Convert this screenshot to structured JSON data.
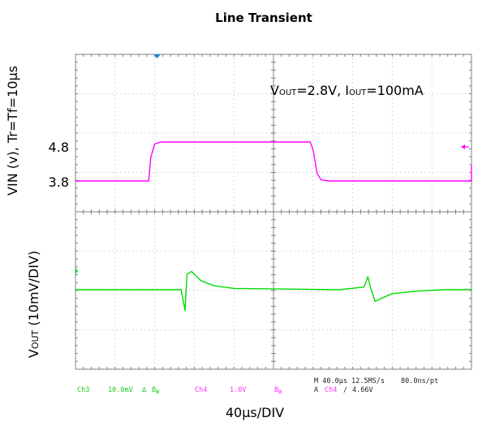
{
  "chart_data": {
    "type": "line",
    "title": "Line Transient",
    "xlabel": "40µs/DIV",
    "ylabel_top": "VIN (v), Tr=Tf=10µs",
    "ylabel_bottom_main": "V",
    "ylabel_bottom_sub": "OUT",
    "ylabel_bottom_rest": " (10mV/DIV)",
    "annotation": {
      "v": "V",
      "v_sub": "OUT",
      "v_val": "=2.8V, ",
      "i": "I",
      "i_sub": "OUT",
      "i_val": "=100mA"
    },
    "x_divisions": 10,
    "x_us_per_div": 40,
    "grid": true,
    "colors": {
      "vin": "#ff00ff",
      "vout": "#00dd00",
      "grid": "#bfbfbf",
      "frame": "#808080",
      "text": "#000000",
      "trigger": "#1a8fcf"
    },
    "series": [
      {
        "name": "VIN",
        "unit": "V",
        "x_us": [
          0,
          180,
          200,
          385,
          400,
          400
        ],
        "y": [
          3.8,
          3.8,
          4.8,
          4.8,
          3.8,
          3.8
        ],
        "tick_labels": [
          "4.8",
          "3.8"
        ],
        "tick_values": [
          4.8,
          3.8
        ]
      },
      {
        "name": "VOUT",
        "unit": "mV",
        "x_us": [
          0,
          150,
          160,
          163,
          166,
          169,
          176,
          190,
          210,
          240,
          400,
          437,
          443,
          448,
          454,
          462,
          480,
          520,
          560,
          600
        ],
        "y": [
          0.0,
          0.0,
          0.0,
          -0.4,
          -0.8,
          0.6,
          0.7,
          0.35,
          0.15,
          0.05,
          0.0,
          0.1,
          0.5,
          0.0,
          -0.45,
          -0.35,
          -0.15,
          -0.05,
          0.0,
          0.0
        ]
      }
    ],
    "scope_info": {
      "ch3": "Ch3",
      "ch3_scale": "10.0mV",
      "ch3_coupling": "∆",
      "ch3_bw": "B",
      "ch3_bw_sub": "W",
      "ch4": "Ch4",
      "ch4_scale": "1.0V",
      "ch4_bw": "B",
      "ch4_bw_sub": "W",
      "timebase": "M 40.0µs 12.5MS/s",
      "record": "80.0ns/pt",
      "trigger_line_a": "A",
      "trigger_ch": "Ch4",
      "trigger_slope": "∕",
      "trigger_level": "4.66V"
    }
  }
}
